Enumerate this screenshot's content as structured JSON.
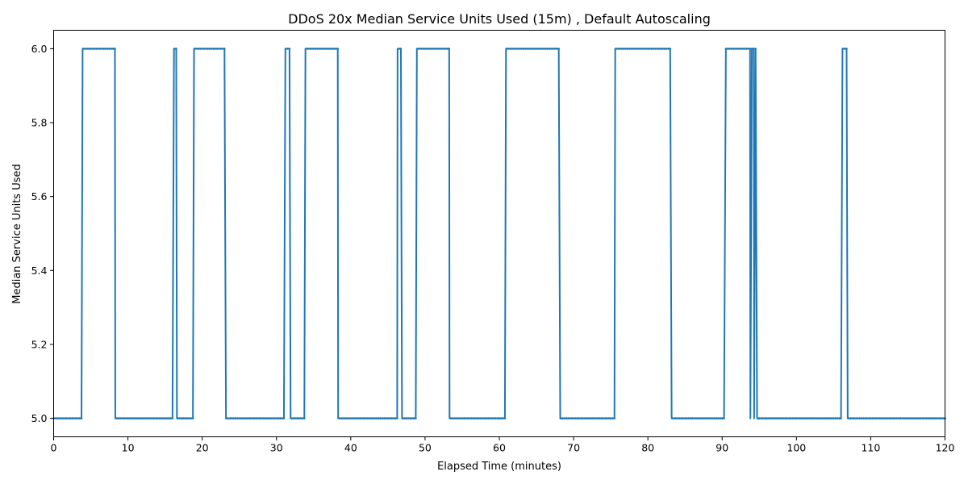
{
  "chart_data": {
    "type": "line",
    "title": "DDoS 20x Median Service Units Used (15m) , Default Autoscaling",
    "xlabel": "Elapsed Time (minutes)",
    "ylabel": "Median Service Units Used",
    "xlim": [
      0,
      120
    ],
    "ylim": [
      4.95,
      6.05
    ],
    "x_ticks": [
      0,
      10,
      20,
      30,
      40,
      50,
      60,
      70,
      80,
      90,
      100,
      110,
      120
    ],
    "y_ticks": [
      5.0,
      5.2,
      5.4,
      5.6,
      5.8,
      6.0
    ],
    "y_tick_labels": [
      "5.0",
      "5.2",
      "5.4",
      "5.6",
      "5.8",
      "6.0"
    ],
    "grid": false,
    "legend": "none",
    "series_color": "#1f77b4",
    "x_step": 0.25,
    "series": [
      {
        "step_changes": [
          {
            "x": 0.0,
            "y": 5
          },
          {
            "x": 3.9,
            "y": 6
          },
          {
            "x": 8.3,
            "y": 5
          },
          {
            "x": 16.2,
            "y": 6
          },
          {
            "x": 16.6,
            "y": 5
          },
          {
            "x": 18.9,
            "y": 6
          },
          {
            "x": 23.2,
            "y": 5
          },
          {
            "x": 31.2,
            "y": 6
          },
          {
            "x": 31.9,
            "y": 5
          },
          {
            "x": 33.9,
            "y": 6
          },
          {
            "x": 38.3,
            "y": 5
          },
          {
            "x": 46.3,
            "y": 6
          },
          {
            "x": 46.9,
            "y": 5
          },
          {
            "x": 48.9,
            "y": 6
          },
          {
            "x": 53.3,
            "y": 5
          },
          {
            "x": 60.9,
            "y": 6
          },
          {
            "x": 68.2,
            "y": 5
          },
          {
            "x": 75.6,
            "y": 6
          },
          {
            "x": 83.2,
            "y": 5
          },
          {
            "x": 90.5,
            "y": 6
          },
          {
            "x": 93.8,
            "y": 5
          },
          {
            "x": 94.0,
            "y": 6
          },
          {
            "x": 94.3,
            "y": 5
          },
          {
            "x": 94.5,
            "y": 6
          },
          {
            "x": 94.7,
            "y": 5
          },
          {
            "x": 106.2,
            "y": 6
          },
          {
            "x": 106.9,
            "y": 5
          },
          {
            "x": 120.0,
            "y": 5
          }
        ]
      }
    ]
  }
}
